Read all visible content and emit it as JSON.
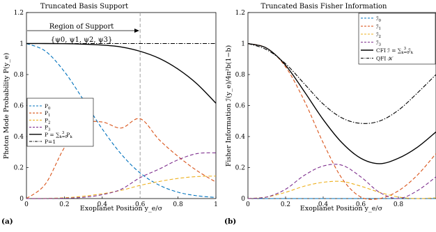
{
  "colors": {
    "blue": "#0072BD",
    "orange": "#D95319",
    "yellow": "#EDB120",
    "purple": "#7E2F8E",
    "black": "#000000",
    "gray": "#a0a0a0"
  },
  "chart_data": [
    {
      "type": "line",
      "panel_label": "(a)",
      "title": "Truncated Basis Support",
      "xlabel": "Exoplanet Position y_e/σ",
      "ylabel": "Photon Mode Probability P(y_e)",
      "xlim": [
        0,
        1
      ],
      "ylim": [
        0,
        1.2
      ],
      "xticks": [
        "0",
        "0.2",
        "0.4",
        "0.6",
        "0.8",
        "1"
      ],
      "yticks": [
        "0",
        "0.2",
        "0.4",
        "0.6",
        "0.8",
        "1",
        "1.2"
      ],
      "grid": false,
      "legend_position": "lower-left",
      "vline_x": 0.6,
      "annotation_title": "Region of Support",
      "annotation_set": "{ψ0, ψ1, ψ2, ψ3}",
      "x": [
        0,
        0.1,
        0.2,
        0.3,
        0.4,
        0.5,
        0.6,
        0.7,
        0.8,
        0.9,
        1.0
      ],
      "series": [
        {
          "name": "P0",
          "legend_main": "P",
          "legend_sub": "0",
          "color": "blue",
          "dash": "dashed",
          "values": [
            1.0,
            0.951,
            0.819,
            0.638,
            0.449,
            0.287,
            0.165,
            0.087,
            0.041,
            0.018,
            0.007
          ]
        },
        {
          "name": "P1",
          "legend_main": "P",
          "legend_sub": "1",
          "color": "orange",
          "dash": "dashed",
          "values": [
            0,
            0.094,
            0.328,
            0.478,
            0.494,
            0.455,
            0.515,
            0.38,
            0.272,
            0.18,
            0.106
          ]
        },
        {
          "name": "P2",
          "legend_main": "P",
          "legend_sub": "2",
          "color": "yellow",
          "dash": "dashed",
          "values": [
            0,
            0.001,
            0.005,
            0.015,
            0.031,
            0.053,
            0.085,
            0.11,
            0.13,
            0.142,
            0.145
          ]
        },
        {
          "name": "P3",
          "legend_main": "P",
          "legend_sub": "3",
          "color": "purple",
          "dash": "dashed",
          "values": [
            0,
            0.0,
            0.002,
            0.008,
            0.025,
            0.06,
            0.135,
            0.19,
            0.25,
            0.29,
            0.295
          ]
        },
        {
          "name": "P = Σ Pk",
          "legend_main": "P = ∑",
          "legend_sub": "k=0",
          "legend_sup": "3",
          "legend_tail": "P",
          "legend_tail_sub": "k",
          "color": "black",
          "dash": "solid",
          "values": [
            1.0,
            1.0,
            0.999,
            0.996,
            0.99,
            0.978,
            0.95,
            0.905,
            0.835,
            0.74,
            0.615
          ]
        },
        {
          "name": "P=1",
          "legend_main": "P=1",
          "color": "black",
          "dash": "dashdot",
          "values": [
            1,
            1,
            1,
            1,
            1,
            1,
            1,
            1,
            1,
            1,
            1
          ]
        }
      ]
    },
    {
      "type": "line",
      "panel_label": "(b)",
      "title": "Truncated Basis Fisher Information",
      "xlabel": "Exoplanet Position y_e/σ",
      "ylabel": "Fisher Information ℐ(y_e)/4π²b(1−b)",
      "xlim": [
        0,
        1
      ],
      "ylim": [
        0,
        1.2
      ],
      "xticks": [
        "0",
        "0.2",
        "0.4",
        "0.6",
        "0.8"
      ],
      "yticks": [
        "0",
        "0.2",
        "0.4",
        "0.6",
        "0.8",
        "1",
        "1.2"
      ],
      "grid": false,
      "legend_position": "top-right",
      "x": [
        0,
        0.1,
        0.2,
        0.3,
        0.4,
        0.5,
        0.6,
        0.7,
        0.8,
        0.9,
        1.0
      ],
      "series": [
        {
          "name": "ℐ0",
          "legend_main": "ℐ",
          "legend_sub": "0",
          "color": "blue",
          "dash": "dashed",
          "values": [
            0,
            0,
            0,
            0,
            0,
            0,
            0,
            0,
            0,
            0,
            0
          ]
        },
        {
          "name": "ℐ1",
          "legend_main": "ℐ",
          "legend_sub": "1",
          "color": "orange",
          "dash": "dashed",
          "values": [
            1.0,
            0.97,
            0.85,
            0.63,
            0.36,
            0.13,
            0.01,
            0.0,
            0.05,
            0.15,
            0.29
          ]
        },
        {
          "name": "ℐ2",
          "legend_main": "ℐ",
          "legend_sub": "2",
          "color": "yellow",
          "dash": "dashed",
          "values": [
            0,
            0.01,
            0.04,
            0.08,
            0.105,
            0.11,
            0.08,
            0.04,
            0.01,
            0.0,
            0.005
          ]
        },
        {
          "name": "ℐ3",
          "legend_main": "ℐ",
          "legend_sub": "3",
          "color": "purple",
          "dash": "dashed",
          "values": [
            0,
            0.01,
            0.06,
            0.15,
            0.21,
            0.215,
            0.14,
            0.04,
            0.0,
            0.05,
            0.14
          ]
        },
        {
          "name": "CFI ℐ = Σ ℐk",
          "legend_main": "CFI ℐ = ∑",
          "legend_sub": "k=0",
          "legend_sup": "3",
          "legend_tail": "ℐ",
          "legend_tail_sub": "k",
          "color": "black",
          "dash": "solid",
          "values": [
            1.0,
            0.97,
            0.86,
            0.69,
            0.51,
            0.36,
            0.26,
            0.225,
            0.26,
            0.33,
            0.43
          ]
        },
        {
          "name": "QFI 𝒦",
          "legend_main": "QFI 𝒦",
          "color": "black",
          "dash": "dashdot",
          "values": [
            1.0,
            0.96,
            0.87,
            0.74,
            0.61,
            0.52,
            0.485,
            0.5,
            0.57,
            0.68,
            0.8
          ]
        }
      ]
    }
  ]
}
